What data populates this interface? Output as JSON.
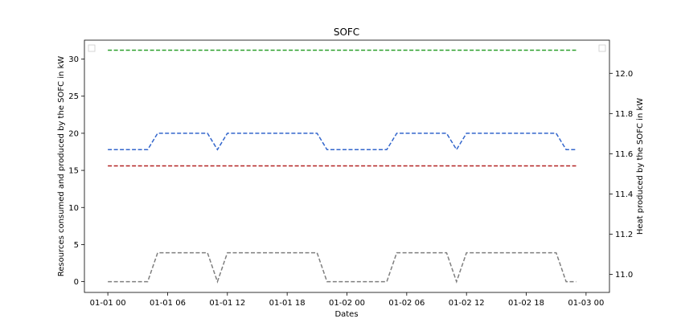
{
  "chart_data": {
    "type": "line",
    "title": "SOFC",
    "xlabel": "Dates",
    "ylabel": "Resources consumed and produced by the SOFC in kW",
    "y2label": "Heat produced by the SOFC in kW",
    "x_unit": "hours from 01-01 00",
    "xlim": [
      -2.35,
      50.35
    ],
    "ylim": [
      -1.45,
      32.55
    ],
    "y2lim": [
      10.91,
      12.165
    ],
    "x_ticks": [
      0,
      6,
      12,
      18,
      24,
      30,
      36,
      42,
      48
    ],
    "x_tick_labels": [
      "01-01 00",
      "01-01 06",
      "01-01 12",
      "01-01 18",
      "01-02 00",
      "01-02 06",
      "01-02 12",
      "01-02 18",
      "01-03 00"
    ],
    "y_ticks": [
      0,
      5,
      10,
      15,
      20,
      25,
      30
    ],
    "y_tick_labels": [
      "0",
      "5",
      "10",
      "15",
      "20",
      "25",
      "30"
    ],
    "y2_ticks": [
      11.0,
      11.2,
      11.4,
      11.6,
      11.8,
      12.0
    ],
    "y2_tick_labels": [
      "11.0",
      "11.2",
      "11.4",
      "11.6",
      "11.8",
      "12.0"
    ],
    "grid": false,
    "legend": "empty legend boxes at top-left and top-right",
    "series": [
      {
        "axis": "left",
        "color": "#2ca02c",
        "style": "dashed",
        "x": [
          0,
          47
        ],
        "y": [
          31.2,
          31.2
        ]
      },
      {
        "axis": "left",
        "color": "#3366cc",
        "style": "dashed",
        "x": [
          0,
          4,
          5,
          10,
          11,
          12,
          21,
          22,
          28,
          29,
          34,
          35,
          36,
          45,
          46,
          47
        ],
        "y": [
          17.8,
          17.8,
          20.0,
          20.0,
          17.8,
          20.0,
          20.0,
          17.8,
          17.8,
          20.0,
          20.0,
          17.8,
          20.0,
          20.0,
          17.8,
          17.8
        ]
      },
      {
        "axis": "left",
        "color": "#b22222",
        "style": "dashed",
        "x": [
          0,
          47
        ],
        "y": [
          15.6,
          15.6
        ]
      },
      {
        "axis": "left",
        "color": "#7f7f7f",
        "style": "dashed",
        "x": [
          0,
          4,
          5,
          10,
          11,
          12,
          21,
          22,
          28,
          29,
          34,
          35,
          36,
          45,
          46,
          47
        ],
        "y": [
          0,
          0,
          3.9,
          3.9,
          0,
          3.9,
          3.9,
          0,
          0,
          3.9,
          3.9,
          0,
          3.9,
          3.9,
          0,
          0
        ]
      }
    ]
  }
}
